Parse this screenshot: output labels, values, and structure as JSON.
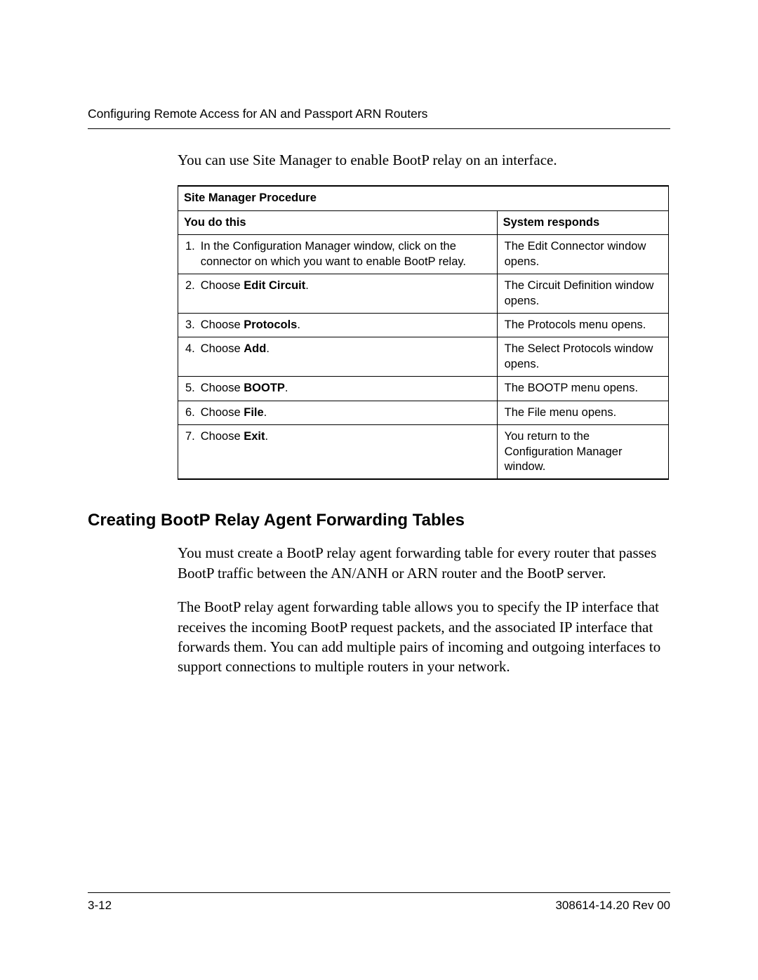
{
  "header": {
    "running_title": "Configuring Remote Access for AN and Passport ARN Routers"
  },
  "intro_text": "You can use Site Manager to enable BootP relay on an interface.",
  "table": {
    "title": "Site Manager Procedure",
    "col_you": "You do this",
    "col_sys": "System responds",
    "rows": [
      {
        "num": "1.",
        "action_pre": "In the Configuration Manager window, click on the connector on which you want to enable BootP relay.",
        "action_bold": "",
        "action_post": "",
        "response": "The Edit Connector window opens."
      },
      {
        "num": "2.",
        "action_pre": "Choose ",
        "action_bold": "Edit Circuit",
        "action_post": ".",
        "response": "The Circuit Definition window opens."
      },
      {
        "num": "3.",
        "action_pre": "Choose ",
        "action_bold": "Protocols",
        "action_post": ".",
        "response": "The Protocols menu opens."
      },
      {
        "num": "4.",
        "action_pre": "Choose ",
        "action_bold": "Add",
        "action_post": ".",
        "response": "The Select Protocols window opens."
      },
      {
        "num": "5.",
        "action_pre": "Choose ",
        "action_bold": "BOOTP",
        "action_post": ".",
        "response": "The BOOTP menu opens."
      },
      {
        "num": "6.",
        "action_pre": "Choose ",
        "action_bold": "File",
        "action_post": ".",
        "response": "The File menu opens."
      },
      {
        "num": "7.",
        "action_pre": "Choose ",
        "action_bold": "Exit",
        "action_post": ".",
        "response": "You return to the Configuration Manager window."
      }
    ]
  },
  "section": {
    "heading": "Creating BootP Relay Agent Forwarding Tables",
    "para1": "You must create a BootP relay agent forwarding table for every router that passes BootP traffic between the AN/ANH or ARN router and the BootP server.",
    "para2": "The BootP relay agent forwarding table allows you to specify the IP interface that receives the incoming BootP request packets, and the associated IP interface that forwards them. You can add multiple pairs of incoming and outgoing interfaces to support connections to multiple routers in your network."
  },
  "footer": {
    "page_num": "3-12",
    "doc_id": "308614-14.20 Rev 00"
  }
}
